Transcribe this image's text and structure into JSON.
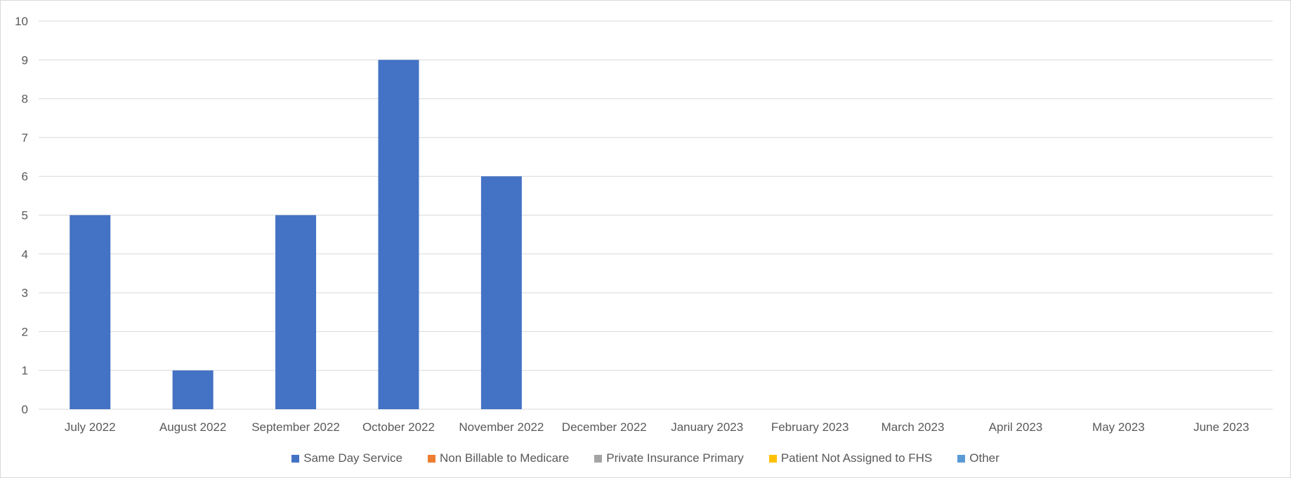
{
  "chart_data": {
    "type": "bar",
    "title": "",
    "xlabel": "",
    "ylabel": "",
    "ylim": [
      0,
      10
    ],
    "yticks": [
      "0",
      "1",
      "2",
      "3",
      "4",
      "5",
      "6",
      "7",
      "8",
      "9",
      "10"
    ],
    "categories": [
      "July 2022",
      "August 2022",
      "September 2022",
      "October 2022",
      "November 2022",
      "December 2022",
      "January 2023",
      "February 2023",
      "March 2023",
      "April 2023",
      "May 2023",
      "June 2023"
    ],
    "series": [
      {
        "name": "Same Day Service",
        "color": "#4472c4",
        "values": [
          5,
          1,
          5,
          9,
          6,
          0,
          0,
          0,
          0,
          0,
          0,
          0
        ]
      },
      {
        "name": "Non Billable to Medicare",
        "color": "#ed7d31",
        "values": [
          0,
          0,
          0,
          0,
          0,
          0,
          0,
          0,
          0,
          0,
          0,
          0
        ]
      },
      {
        "name": "Private Insurance Primary",
        "color": "#a5a5a5",
        "values": [
          0,
          0,
          0,
          0,
          0,
          0,
          0,
          0,
          0,
          0,
          0,
          0
        ]
      },
      {
        "name": "Patient Not Assigned to FHS",
        "color": "#ffc000",
        "values": [
          0,
          0,
          0,
          0,
          0,
          0,
          0,
          0,
          0,
          0,
          0,
          0
        ]
      },
      {
        "name": "Other",
        "color": "#5b9bd5",
        "values": [
          0,
          0,
          0,
          0,
          0,
          0,
          0,
          0,
          0,
          0,
          0,
          0
        ]
      }
    ],
    "grid": true,
    "legend_position": "bottom"
  }
}
